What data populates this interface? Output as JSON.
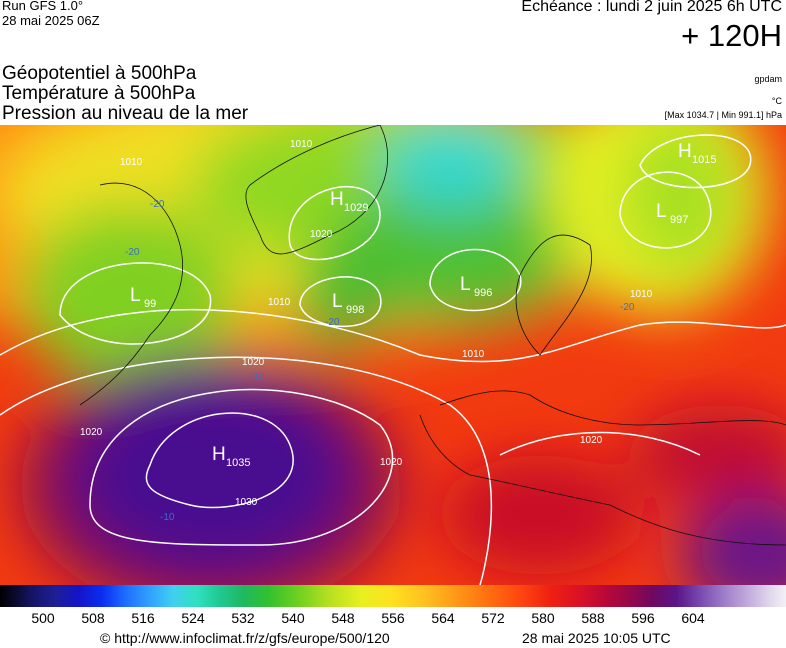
{
  "header": {
    "run": "Run GFS 1.0°",
    "run_date": "28 mai 2025 06Z",
    "valid": "Echéance : lundi 2 juin 2025 6h UTC",
    "lead": "+ 120H",
    "fields": [
      "Géopotentiel à 500hPa",
      "Température à 500hPa",
      "Pression au niveau de la mer"
    ],
    "unit_geo": "gpdam",
    "unit_temp": "°C",
    "pressure_range": "[Max 1034.7 | Min 991.1] hPa"
  },
  "map": {
    "centers": [
      {
        "letter": "H",
        "value": "1029"
      },
      {
        "letter": "L",
        "value": "998"
      },
      {
        "letter": "L",
        "value": "996"
      },
      {
        "letter": "H",
        "value": "1035"
      },
      {
        "letter": "L",
        "value": "997"
      },
      {
        "letter": "H",
        "value": "1015"
      },
      {
        "letter": "L",
        "value": "99"
      }
    ],
    "isobar_labels": [
      "1010",
      "1020",
      "1010",
      "1010",
      "1020",
      "1020",
      "1030",
      "1020",
      "1020",
      "1010",
      "1010"
    ],
    "temperature_labels": [
      "-20",
      "-20",
      "-20",
      "-20",
      "-10",
      "-10"
    ]
  },
  "legend": {
    "ticks": [
      500,
      508,
      516,
      524,
      532,
      540,
      548,
      556,
      564,
      572,
      580,
      588,
      596,
      604
    ]
  },
  "footer": {
    "url": "© http://www.infoclimat.fr/z/gfs/europe/500/120",
    "date": "28 mai 2025 10:05 UTC"
  }
}
